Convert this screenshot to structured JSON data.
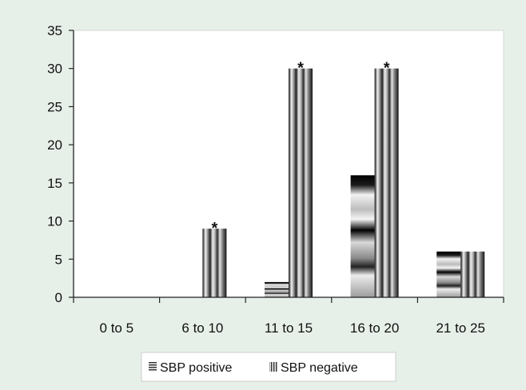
{
  "colors": {
    "background": "#e7efe9",
    "plot_background": "#ffffff",
    "axis": "#222222"
  },
  "chart_data": {
    "type": "bar",
    "categories": [
      "0 to 5",
      "6 to 10",
      "11 to 15",
      "16 to 20",
      "21 to 25"
    ],
    "series": [
      {
        "name": "SBP positive",
        "values": [
          0,
          0,
          2,
          16,
          6
        ]
      },
      {
        "name": "SBP negative",
        "values": [
          0,
          9,
          30,
          30,
          6
        ]
      }
    ],
    "annotations": [
      {
        "category": "6 to 10",
        "series": "SBP negative",
        "text": "*"
      },
      {
        "category": "11 to 15",
        "series": "SBP negative",
        "text": "*"
      },
      {
        "category": "16 to 20",
        "series": "SBP negative",
        "text": "*"
      }
    ],
    "ylim": [
      0,
      35
    ],
    "yticks": [
      0,
      5,
      10,
      15,
      20,
      25,
      30,
      35
    ],
    "grid": false,
    "legend": "bottom-center"
  }
}
